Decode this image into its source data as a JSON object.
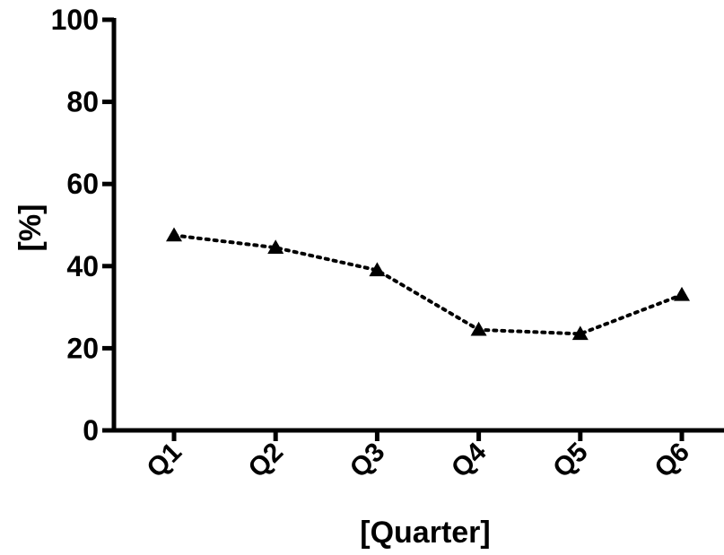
{
  "chart_data": {
    "type": "line",
    "title": "",
    "xlabel": "[Quarter]",
    "ylabel": "[%]",
    "categories": [
      "Q1",
      "Q2",
      "Q3",
      "Q4",
      "Q5",
      "Q6"
    ],
    "series": [
      {
        "values": [
          47.5,
          44.5,
          39,
          24.5,
          23.5,
          33
        ],
        "marker": "triangle",
        "line_style": "dotted",
        "color": "#000000"
      }
    ],
    "ylim": [
      0,
      100
    ],
    "yticks": [
      0,
      20,
      40,
      60,
      80,
      100
    ],
    "grid": false,
    "legend": "none"
  }
}
